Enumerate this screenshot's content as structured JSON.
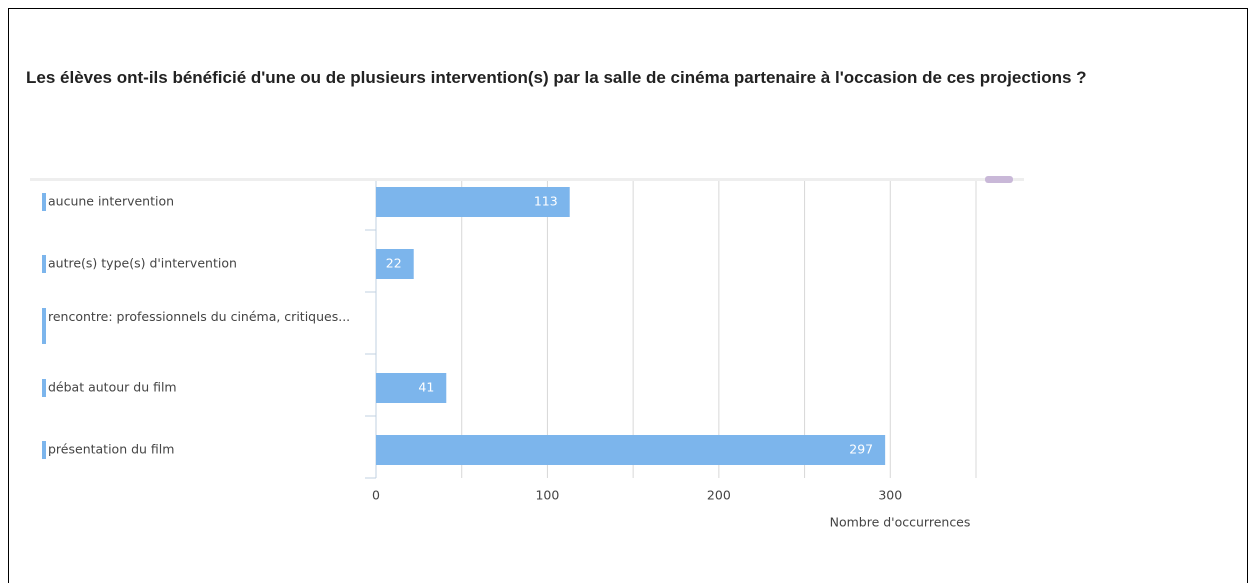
{
  "title": "Les élèves ont-ils bénéficié d'une ou de plusieurs intervention(s) par la salle de cinéma partenaire à l'occasion de ces projections ?",
  "chart_data": {
    "type": "barh",
    "categories": [
      "aucune intervention",
      "autre(s) type(s) d'intervention",
      "rencontre: professionnels du cinéma, critiques...",
      "débat autour du film",
      "présentation du film"
    ],
    "values": [
      113,
      22,
      0,
      41,
      297
    ],
    "color": "#7cb5ec",
    "xlim": [
      0,
      378
    ],
    "xticks": [
      0,
      100,
      200,
      300
    ],
    "xminorticks": [
      50,
      150,
      250,
      350
    ],
    "grid": true,
    "xlabel": "Nombre d'occurrences"
  }
}
